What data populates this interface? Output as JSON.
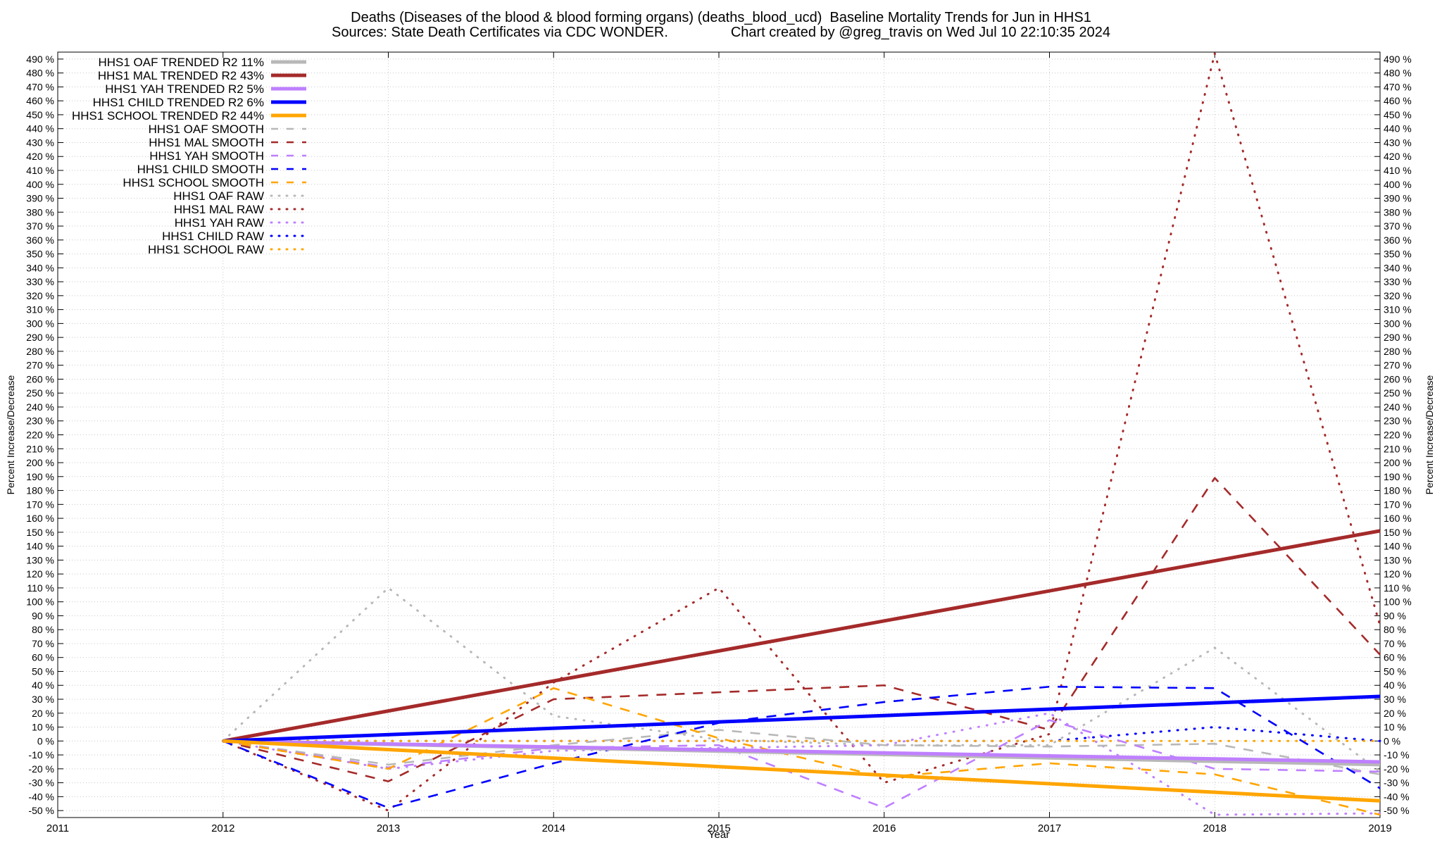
{
  "title_line_1": "Deaths (Diseases of the blood & blood forming organs) (deaths_blood_ucd)  Baseline Mortality Trends for Jun in HHS1",
  "title_line_2": "Sources: State Death Certificates via CDC WONDER.                Chart created by @greg_travis on Wed Jul 10 22:10:35 2024",
  "chart_data": {
    "type": "line",
    "xlabel": "Year",
    "ylabel": "Percent Increase/Decrease",
    "xlim": [
      2011,
      2019
    ],
    "ylim": [
      -55,
      495
    ],
    "x_ticks": [
      2011,
      2012,
      2013,
      2014,
      2015,
      2016,
      2017,
      2018,
      2019
    ],
    "y_ticks": [
      -50,
      -40,
      -30,
      -20,
      -10,
      0,
      10,
      20,
      30,
      40,
      50,
      60,
      70,
      80,
      90,
      100,
      110,
      120,
      130,
      140,
      150,
      160,
      170,
      180,
      190,
      200,
      210,
      220,
      230,
      240,
      250,
      260,
      270,
      280,
      290,
      300,
      310,
      320,
      330,
      340,
      350,
      360,
      370,
      380,
      390,
      400,
      410,
      420,
      430,
      440,
      450,
      460,
      470,
      480,
      490
    ],
    "y_tick_suffix": " %",
    "grid": true,
    "legend_position": "top-left",
    "series": [
      {
        "name": "HHS1 OAF TRENDED R2  11%",
        "style": "trend",
        "color": "#b8b8b8",
        "x": [
          2012,
          2019
        ],
        "y": [
          0,
          -17
        ]
      },
      {
        "name": "HHS1 MAL TRENDED R2  43%",
        "style": "trend",
        "color": "#a52a2a",
        "x": [
          2012,
          2019
        ],
        "y": [
          0,
          151
        ]
      },
      {
        "name": "HHS1 YAH TRENDED R2  5%",
        "style": "trend",
        "color": "#bf80ff",
        "x": [
          2012,
          2019
        ],
        "y": [
          0,
          -15
        ]
      },
      {
        "name": "HHS1 CHILD TRENDED R2  6%",
        "style": "trend",
        "color": "#0000ff",
        "x": [
          2012,
          2019
        ],
        "y": [
          0,
          32
        ]
      },
      {
        "name": "HHS1 SCHOOL TRENDED R2  44%",
        "style": "trend",
        "color": "#ffa500",
        "x": [
          2012,
          2019
        ],
        "y": [
          0,
          -43
        ]
      },
      {
        "name": "HHS1 OAF SMOOTH",
        "style": "smooth",
        "color": "#b8b8b8",
        "x": [
          2012,
          2013,
          2014,
          2015,
          2016,
          2017,
          2018,
          2019
        ],
        "y": [
          0,
          -17,
          -3,
          8,
          -3,
          -4,
          -2,
          -24
        ]
      },
      {
        "name": "HHS1 MAL SMOOTH",
        "style": "smooth",
        "color": "#a52a2a",
        "x": [
          2012,
          2013,
          2014,
          2015,
          2016,
          2017,
          2018,
          2019
        ],
        "y": [
          0,
          -29,
          30,
          35,
          40,
          8,
          189,
          62
        ]
      },
      {
        "name": "HHS1 YAH SMOOTH",
        "style": "smooth",
        "color": "#bf80ff",
        "x": [
          2012,
          2013,
          2014,
          2015,
          2016,
          2017,
          2018,
          2019
        ],
        "y": [
          0,
          -19,
          -5,
          -3,
          -48,
          15,
          -20,
          -22
        ]
      },
      {
        "name": "HHS1 CHILD SMOOTH",
        "style": "smooth",
        "color": "#0000ff",
        "x": [
          2012,
          2013,
          2014,
          2015,
          2016,
          2017,
          2018,
          2019
        ],
        "y": [
          0,
          -48,
          -16,
          13,
          28,
          39,
          38,
          -34
        ]
      },
      {
        "name": "HHS1 SCHOOL SMOOTH",
        "style": "smooth",
        "color": "#ffa500",
        "x": [
          2012,
          2013,
          2014,
          2015,
          2016,
          2017,
          2018,
          2019
        ],
        "y": [
          0,
          -20,
          38,
          2,
          -26,
          -16,
          -24,
          -53
        ]
      },
      {
        "name": "HHS1 OAF RAW",
        "style": "raw",
        "color": "#b8b8b8",
        "x": [
          2012,
          2013,
          2014,
          2015,
          2016,
          2017,
          2018,
          2019
        ],
        "y": [
          0,
          110,
          18,
          1,
          -3,
          -3,
          67,
          -22
        ]
      },
      {
        "name": "HHS1 MAL RAW",
        "style": "raw",
        "color": "#a52a2a",
        "x": [
          2012,
          2013,
          2014,
          2015,
          2016,
          2017,
          2018,
          2019
        ],
        "y": [
          0,
          -50,
          42,
          110,
          -30,
          5,
          494,
          83
        ]
      },
      {
        "name": "HHS1 YAH RAW",
        "style": "raw",
        "color": "#bf80ff",
        "x": [
          2012,
          2013,
          2014,
          2015,
          2016,
          2017,
          2018,
          2019
        ],
        "y": [
          0,
          -20,
          -7,
          -5,
          -3,
          20,
          -53,
          -52
        ]
      },
      {
        "name": "HHS1 CHILD RAW",
        "style": "raw",
        "color": "#0000ff",
        "x": [
          2012,
          2013,
          2014,
          2015,
          2016,
          2017,
          2018,
          2019
        ],
        "y": [
          0,
          0,
          0,
          0,
          0,
          0,
          10,
          0
        ]
      },
      {
        "name": "HHS1 SCHOOL RAW",
        "style": "raw",
        "color": "#ffa500",
        "x": [
          2012,
          2013,
          2014,
          2015,
          2016,
          2017,
          2018,
          2019
        ],
        "y": [
          0,
          0,
          0,
          0,
          0,
          0,
          0,
          0
        ]
      }
    ]
  }
}
